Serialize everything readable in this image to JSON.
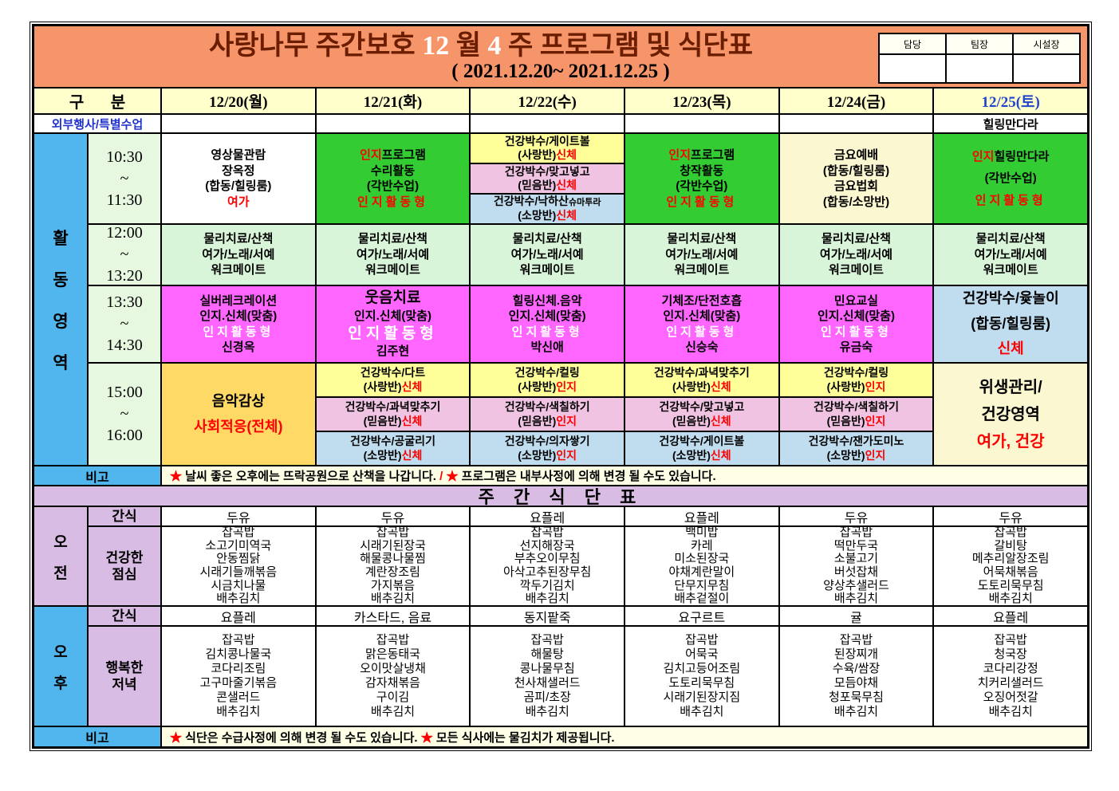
{
  "colors": {
    "header_bg": "#F6946A",
    "title_text": "#6B1D00",
    "accent_red": "#FF0000",
    "green": "#33CC33",
    "magenta": "#FF66FF",
    "yellow": "#FFFF99",
    "pink": "#F0C3E3",
    "light_blue": "#BFDDEF",
    "gold": "#FFD965",
    "cream": "#FBF7D0",
    "sidebar_blue": "#52B6EE",
    "lavender": "#D9BCE4",
    "pale_green": "#E6F8E0",
    "date_header_bg": "#FFFFCC",
    "saturday_text": "#2244CC"
  },
  "title": {
    "line1": [
      [
        {
          "t": "사랑나무 주간보호 ",
          "c": "dkred"
        },
        {
          "t": "12",
          "c": "white"
        },
        {
          "t": " 월 ",
          "c": "dkred"
        },
        {
          "t": "4",
          "c": "white"
        },
        {
          "t": " 주 프로그램 및 식단표",
          "c": "dkred"
        }
      ]
    ],
    "date_range": "(  2021.12.20~  2021.12.25  )"
  },
  "sign": {
    "labels": [
      "담당",
      "팀장",
      "시설장"
    ]
  },
  "header": {
    "group": "구 분",
    "days": [
      "12/20(월)",
      "12/21(화)",
      "12/22(수)",
      "12/23(목)",
      "12/24(금)",
      "12/25(토)"
    ]
  },
  "special": {
    "label": "외부행사/특별수업",
    "cells": [
      "",
      "",
      "",
      "",
      "",
      "힐링만다라"
    ]
  },
  "sidebar": {
    "activity": [
      "활",
      "동",
      "영",
      "역"
    ],
    "morning": [
      "오",
      "전"
    ],
    "afternoon": [
      "오",
      "후"
    ]
  },
  "times": {
    "t1": [
      "10:30",
      "~",
      "11:30"
    ],
    "t2": [
      "12:00",
      "~",
      "13:20"
    ],
    "t3": [
      "13:30",
      "~",
      "14:30"
    ],
    "t4": [
      "15:00",
      "~",
      "16:00"
    ]
  },
  "act1": {
    "d0": [
      [
        "영상물관람"
      ],
      [
        "장옥정"
      ],
      [
        "(합동/힐링룸)"
      ],
      [
        {
          "t": "여가",
          "c": "red"
        }
      ]
    ],
    "d1": [
      [
        {
          "t": "인지",
          "c": "red"
        },
        {
          "t": "프로그램"
        }
      ],
      [
        "수리활동"
      ],
      [
        "(각반수업)"
      ],
      [
        {
          "t": "인지활동형",
          "c": "red",
          "s": "wide"
        }
      ]
    ],
    "d2": [
      [
        [
          "건강박수/게이트볼"
        ],
        [
          "(사랑반)",
          {
            "t": "신체",
            "c": "red"
          }
        ]
      ],
      [
        [
          "건강박수/맞고넣고"
        ],
        [
          "(믿음반)",
          {
            "t": "신체",
            "c": "red"
          }
        ]
      ],
      [
        [
          "건강박수/낙하산",
          {
            "t": "슈마투라",
            "s": "small"
          }
        ],
        [
          "(소망반)",
          {
            "t": "신체",
            "c": "red"
          }
        ]
      ]
    ],
    "d3": [
      [
        {
          "t": "인지",
          "c": "red"
        },
        {
          "t": "프로그램"
        }
      ],
      [
        "창작활동"
      ],
      [
        "(각반수업)"
      ],
      [
        {
          "t": "인지활동형",
          "c": "red",
          "s": "wide"
        }
      ]
    ],
    "d4": [
      [
        "금요예배"
      ],
      [
        "(합동/힐링룸)"
      ],
      [
        "금요법회"
      ],
      [
        "(합동/소망반)"
      ]
    ],
    "d5": [
      [
        {
          "t": "인지",
          "c": "red"
        },
        {
          "t": "힐링만다라"
        }
      ],
      [
        "(각반수업)"
      ],
      [
        {
          "t": "인지활동형",
          "c": "red",
          "s": "wide"
        }
      ]
    ]
  },
  "act2": [
    [
      "물리치료/산책"
    ],
    [
      "여가/노래/서예"
    ],
    [
      "워크메이트"
    ]
  ],
  "act3": {
    "d0": [
      [
        "실버레크레이션"
      ],
      [
        "인지.신체(맞춤)"
      ],
      [
        {
          "t": "인지활동형",
          "c": "white",
          "s": "wide"
        }
      ],
      [
        "신경옥"
      ]
    ],
    "d1": [
      [
        {
          "t": "웃음치료",
          "s": "big"
        }
      ],
      [
        "인지.신체(맞춤)"
      ],
      [
        {
          "t": "인지활동형",
          "c": "white",
          "s": "bigwide"
        }
      ],
      [
        "김주현"
      ]
    ],
    "d2": [
      [
        "힐링신체.음악"
      ],
      [
        "인지.신체(맞춤)"
      ],
      [
        {
          "t": "인지활동형",
          "c": "white",
          "s": "wide"
        }
      ],
      [
        "박신애"
      ]
    ],
    "d3": [
      [
        "기체조/단전호흡"
      ],
      [
        "인지.신체(맞춤)"
      ],
      [
        {
          "t": "인지활동형",
          "c": "white",
          "s": "wide"
        }
      ],
      [
        "신승숙"
      ]
    ],
    "d4": [
      [
        "민요교실"
      ],
      [
        "인지.신체(맞춤)"
      ],
      [
        {
          "t": "인지활동형",
          "c": "white",
          "s": "wide"
        }
      ],
      [
        "유금숙"
      ]
    ],
    "d5": [
      [
        "건강박수/윷놀이"
      ],
      [
        "(합동/힐링룸)"
      ],
      [
        {
          "t": "신체",
          "c": "red"
        }
      ]
    ]
  },
  "act4": {
    "d0": [
      [
        "음악감상"
      ],
      [
        {
          "t": "사회적응(전체)",
          "c": "red"
        }
      ]
    ],
    "d1": [
      [
        [
          "건강박수/다트"
        ],
        [
          "(사랑반)",
          {
            "t": "신체",
            "c": "red"
          }
        ]
      ],
      [
        [
          "건강박수/과녁맞추기"
        ],
        [
          "(믿음반)",
          {
            "t": "신체",
            "c": "red"
          }
        ]
      ],
      [
        [
          "건강박수/공굴리기"
        ],
        [
          "(소망반)",
          {
            "t": "신체",
            "c": "red"
          }
        ]
      ]
    ],
    "d2": [
      [
        [
          "건강박수/컬링"
        ],
        [
          "(사랑반)",
          {
            "t": "인지",
            "c": "red"
          }
        ]
      ],
      [
        [
          "건강박수/색칠하기"
        ],
        [
          "(믿음반)",
          {
            "t": "인지",
            "c": "red"
          }
        ]
      ],
      [
        [
          "건강박수/의자쌓기"
        ],
        [
          "(소망반)",
          {
            "t": "인지",
            "c": "red"
          }
        ]
      ]
    ],
    "d3": [
      [
        [
          "건강박수/과녁맞추기"
        ],
        [
          "(사랑반)",
          {
            "t": "신체",
            "c": "red"
          }
        ]
      ],
      [
        [
          "건강박수/맞고넣고"
        ],
        [
          "(믿음반)",
          {
            "t": "신체",
            "c": "red"
          }
        ]
      ],
      [
        [
          "건강박수/게이트볼"
        ],
        [
          "(소망반)",
          {
            "t": "신체",
            "c": "red"
          }
        ]
      ]
    ],
    "d4": [
      [
        [
          "건강박수/컬링"
        ],
        [
          "(사랑반)",
          {
            "t": "인지",
            "c": "red"
          }
        ]
      ],
      [
        [
          "건강박수/색칠하기"
        ],
        [
          "(믿음반)",
          {
            "t": "인지",
            "c": "red"
          }
        ]
      ],
      [
        [
          "건강박수/잰가도미노"
        ],
        [
          "(소망반)",
          {
            "t": "인지",
            "c": "red"
          }
        ]
      ]
    ],
    "d5": [
      [
        "위생관리/"
      ],
      [
        "건강영역"
      ],
      [
        {
          "t": "여가, 건강",
          "c": "red"
        }
      ]
    ]
  },
  "notes": {
    "label": "비고",
    "top": [
      [
        {
          "t": "★ ",
          "c": "red"
        },
        {
          "t": "날씨 좋은 오후에는 뜨락공원으로 산책을 나갑니다. "
        },
        {
          "t": "/ ",
          "c": "red"
        },
        {
          "t": "★ ",
          "c": "red"
        },
        {
          "t": "프로그램은 내부사정에 의해 변경 될 수도 있습니다."
        }
      ]
    ],
    "bottom": [
      [
        {
          "t": "★ ",
          "c": "red"
        },
        {
          "t": "식단은 수급사정에 의해 변경 될 수도 있습니다. "
        },
        {
          "t": "★ ",
          "c": "red"
        },
        {
          "t": "모든 식사에는 물김치가 제공됩니다."
        }
      ]
    ]
  },
  "meals": {
    "title": "주 간 식 단 표",
    "snack_label": "간식",
    "lunch_label": [
      "건강한",
      "점심"
    ],
    "dinner_label": [
      "행복한",
      "저녁"
    ],
    "am_snacks": [
      "두유",
      "두유",
      "요플레",
      "요플레",
      "두유",
      "두유"
    ],
    "lunches": [
      [
        "잡곡밥",
        "소고기미역국",
        "안동찜닭",
        "시래기들깨볶음",
        "시금치나물",
        "배추김치"
      ],
      [
        "잡곡밥",
        "시래기된장국",
        "해물콩나물찜",
        "계란장조림",
        "가지볶음",
        "배추김치"
      ],
      [
        "잡곡밥",
        "선지해장국",
        "부추오이무침",
        "아삭고추된장무침",
        "깍두기김치",
        "배추김치"
      ],
      [
        "백미밥",
        "카레",
        "미소된장국",
        "야채계란말이",
        "단무지무침",
        "배추겉절이"
      ],
      [
        "잡곡밥",
        "떡만두국",
        "소불고기",
        "버섯잡채",
        "양상추샐러드",
        "배추김치"
      ],
      [
        "잡곡밥",
        "갈비탕",
        "메추리알장조림",
        "어묵채볶음",
        "도토리묵무침",
        "배추김치"
      ]
    ],
    "pm_snacks": [
      "요플레",
      "카스타드, 음료",
      "동지팥죽",
      "요구르트",
      "귤",
      "요플레"
    ],
    "dinners": [
      [
        "잡곡밥",
        "김치콩나물국",
        "코다리조림",
        "고구마줄기볶음",
        "콘샐러드",
        "배추김치"
      ],
      [
        "잡곡밥",
        "맑은동태국",
        "오이맛살냉채",
        "감자채볶음",
        "구이김",
        "배추김치"
      ],
      [
        "잡곡밥",
        "해물탕",
        "콩나물무침",
        "천사채샐러드",
        "곰피/초장",
        "배추김치"
      ],
      [
        "잡곡밥",
        "어묵국",
        "김치고등어조림",
        "도토리묵무침",
        "시래기된장지짐",
        "배추김치"
      ],
      [
        "잡곡밥",
        "된장찌개",
        "수육/쌈장",
        "모듬야채",
        "청포묵무침",
        "배추김치"
      ],
      [
        "잡곡밥",
        "청국장",
        "코다리강정",
        "치커리샐러드",
        "오징어젓갈",
        "배추김치"
      ]
    ]
  }
}
